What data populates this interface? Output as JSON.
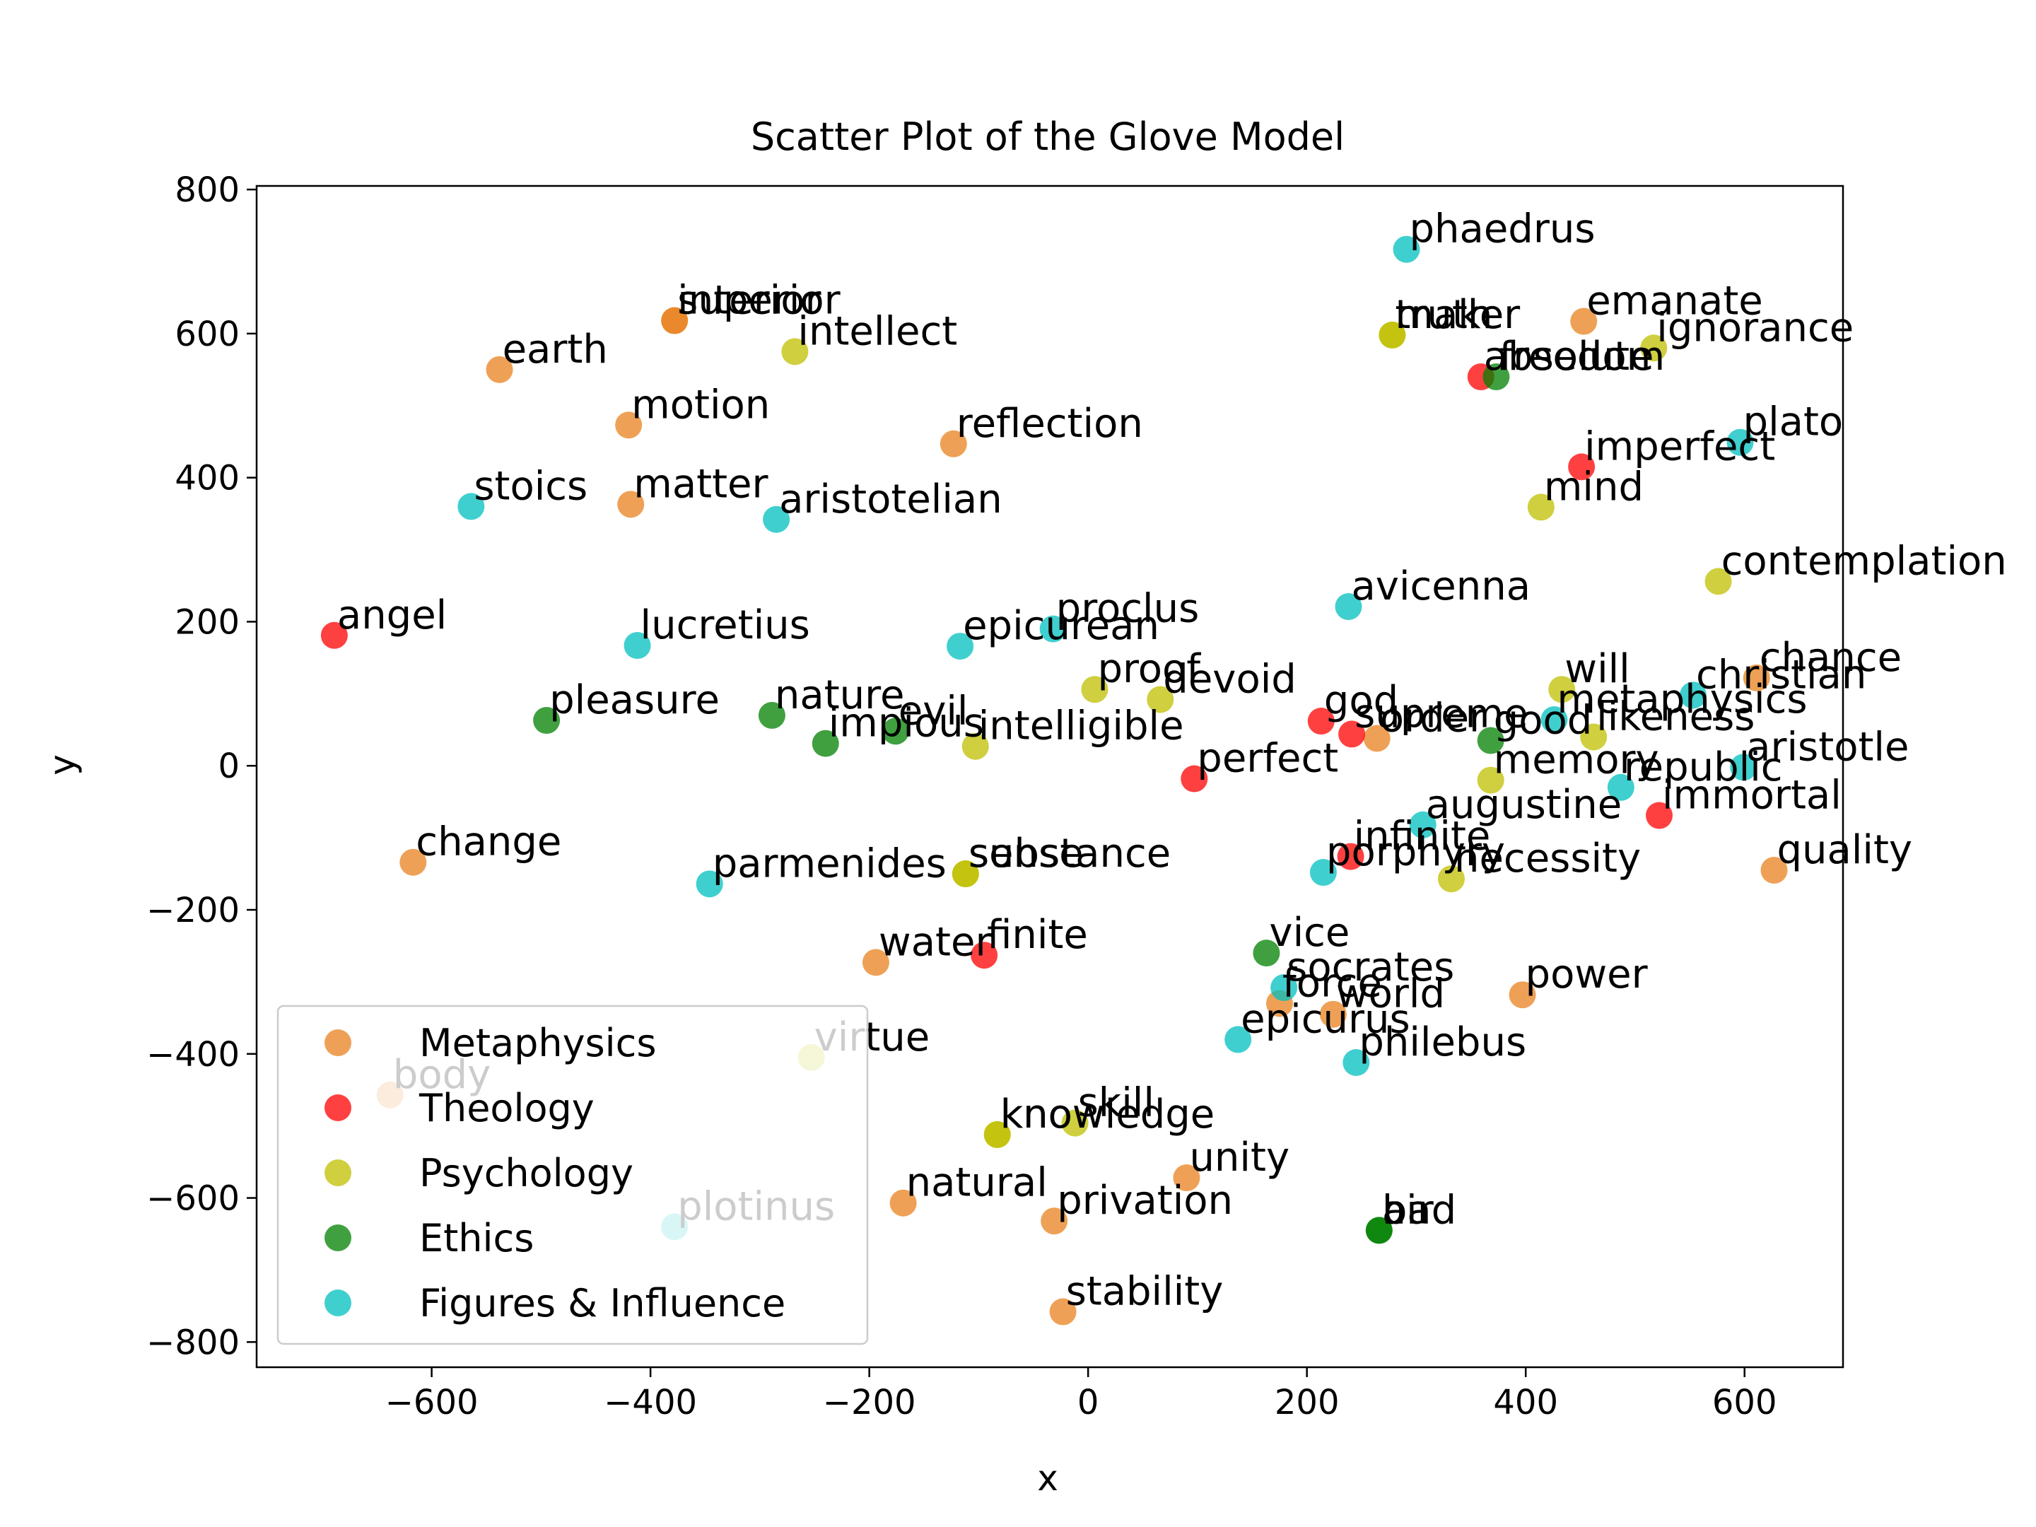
{
  "chart_data": {
    "type": "scatter",
    "title": "Scatter Plot of the Glove Model",
    "xlabel": "x",
    "ylabel": "y",
    "xlim": [
      -760,
      690
    ],
    "ylim": [
      -835,
      805
    ],
    "xticks": [
      -600,
      -400,
      -200,
      0,
      200,
      400,
      600
    ],
    "yticks": [
      800,
      600,
      400,
      200,
      0,
      -200,
      -400,
      -600,
      -800
    ],
    "xtick_labels": [
      "−600",
      "−400",
      "−200",
      "0",
      "200",
      "400",
      "600"
    ],
    "ytick_labels": [
      "800",
      "600",
      "400",
      "200",
      "0",
      "−200",
      "−400",
      "−600",
      "−800"
    ],
    "grid": false,
    "legend_position": "lower-left",
    "legend_columns": 2,
    "series": [
      {
        "name": "Metaphysics",
        "color": "#e8821e",
        "points": [
          {
            "label": "interior",
            "x": -378,
            "y": 618
          },
          {
            "label": "superior",
            "x": -378,
            "y": 618
          },
          {
            "label": "earth",
            "x": -538,
            "y": 550
          },
          {
            "label": "motion",
            "x": -420,
            "y": 473
          },
          {
            "label": "matter",
            "x": -418,
            "y": 363
          },
          {
            "label": "reflection",
            "x": -123,
            "y": 447
          },
          {
            "label": "emanate",
            "x": 453,
            "y": 617
          },
          {
            "label": "chance",
            "x": 611,
            "y": 122
          },
          {
            "label": "order",
            "x": 264,
            "y": 38
          },
          {
            "label": "change",
            "x": -617,
            "y": -134
          },
          {
            "label": "water",
            "x": -194,
            "y": -273
          },
          {
            "label": "power",
            "x": 397,
            "y": -318
          },
          {
            "label": "force",
            "x": 175,
            "y": -330
          },
          {
            "label": "world",
            "x": 224,
            "y": -345
          },
          {
            "label": "quality",
            "x": 627,
            "y": -145
          },
          {
            "label": "body",
            "x": -638,
            "y": -457
          },
          {
            "label": "natural",
            "x": -169,
            "y": -607
          },
          {
            "label": "privation",
            "x": -31,
            "y": -632
          },
          {
            "label": "unity",
            "x": 90,
            "y": -572
          },
          {
            "label": "stability",
            "x": -23,
            "y": -758
          }
        ]
      },
      {
        "name": "Theology",
        "color": "#ff0000",
        "points": [
          {
            "label": "angel",
            "x": -689,
            "y": 181
          },
          {
            "label": "absolute",
            "x": 359,
            "y": 540
          },
          {
            "label": "imperfect",
            "x": 451,
            "y": 415
          },
          {
            "label": "god",
            "x": 213,
            "y": 62
          },
          {
            "label": "supreme",
            "x": 241,
            "y": 44
          },
          {
            "label": "perfect",
            "x": 97,
            "y": -18
          },
          {
            "label": "immortal",
            "x": 522,
            "y": -69
          },
          {
            "label": "infinite",
            "x": 240,
            "y": -126
          },
          {
            "label": "finite",
            "x": -95,
            "y": -263
          }
        ]
      },
      {
        "name": "Psychology",
        "color": "#bfbf00",
        "points": [
          {
            "label": "intellect",
            "x": -268,
            "y": 575
          },
          {
            "label": "truth",
            "x": 278,
            "y": 598
          },
          {
            "label": "maker",
            "x": 278,
            "y": 598
          },
          {
            "label": "ignorance",
            "x": 517,
            "y": 580
          },
          {
            "label": "mind",
            "x": 414,
            "y": 359
          },
          {
            "label": "contemplation",
            "x": 576,
            "y": 256
          },
          {
            "label": "proof",
            "x": 6,
            "y": 106
          },
          {
            "label": "devoid",
            "x": 66,
            "y": 92
          },
          {
            "label": "intelligible",
            "x": -103,
            "y": 27
          },
          {
            "label": "will",
            "x": 433,
            "y": 106
          },
          {
            "label": "likeness",
            "x": 462,
            "y": 40
          },
          {
            "label": "memory",
            "x": 368,
            "y": -20
          },
          {
            "label": "necessity",
            "x": 332,
            "y": -157
          },
          {
            "label": "sense",
            "x": -112,
            "y": -150
          },
          {
            "label": "substance",
            "x": -112,
            "y": -150
          },
          {
            "label": "know",
            "x": -83,
            "y": -512
          },
          {
            "label": "knowledge",
            "x": -83,
            "y": -512
          },
          {
            "label": "skill",
            "x": -12,
            "y": -496
          },
          {
            "label": "virtue",
            "x": -253,
            "y": -405
          }
        ]
      },
      {
        "name": "Ethics",
        "color": "#008000",
        "points": [
          {
            "label": "freedom",
            "x": 373,
            "y": 540
          },
          {
            "label": "pleasure",
            "x": -495,
            "y": 63
          },
          {
            "label": "nature",
            "x": -289,
            "y": 70
          },
          {
            "label": "impious",
            "x": -240,
            "y": 31
          },
          {
            "label": "evil",
            "x": -176,
            "y": 48
          },
          {
            "label": "good",
            "x": 368,
            "y": 35
          },
          {
            "label": "vice",
            "x": 163,
            "y": -260
          },
          {
            "label": "bad",
            "x": 266,
            "y": -645
          },
          {
            "label": "air",
            "x": 266,
            "y": -645
          }
        ]
      },
      {
        "name": "Figures & Influence",
        "color": "#00bfbf",
        "points": [
          {
            "label": "phaedrus",
            "x": 291,
            "y": 717
          },
          {
            "label": "plato",
            "x": 596,
            "y": 449
          },
          {
            "label": "stoics",
            "x": -564,
            "y": 360
          },
          {
            "label": "aristotelian",
            "x": -285,
            "y": 342
          },
          {
            "label": "avicenna",
            "x": 238,
            "y": 221
          },
          {
            "label": "lucretius",
            "x": -412,
            "y": 167
          },
          {
            "label": "epicurean",
            "x": -117,
            "y": 166
          },
          {
            "label": "proclus",
            "x": -32,
            "y": 190
          },
          {
            "label": "christian",
            "x": 553,
            "y": 98
          },
          {
            "label": "metaphysics",
            "x": 426,
            "y": 64
          },
          {
            "label": "aristotle",
            "x": 599,
            "y": -2
          },
          {
            "label": "republic",
            "x": 487,
            "y": -30
          },
          {
            "label": "augustine",
            "x": 306,
            "y": -82
          },
          {
            "label": "porphyry",
            "x": 215,
            "y": -148
          },
          {
            "label": "parmenides",
            "x": -346,
            "y": -164
          },
          {
            "label": "socrates",
            "x": 179,
            "y": -308
          },
          {
            "label": "epicurus",
            "x": 137,
            "y": -380
          },
          {
            "label": "philebus",
            "x": 245,
            "y": -412
          },
          {
            "label": "plotinus",
            "x": -378,
            "y": -640
          }
        ]
      }
    ]
  }
}
